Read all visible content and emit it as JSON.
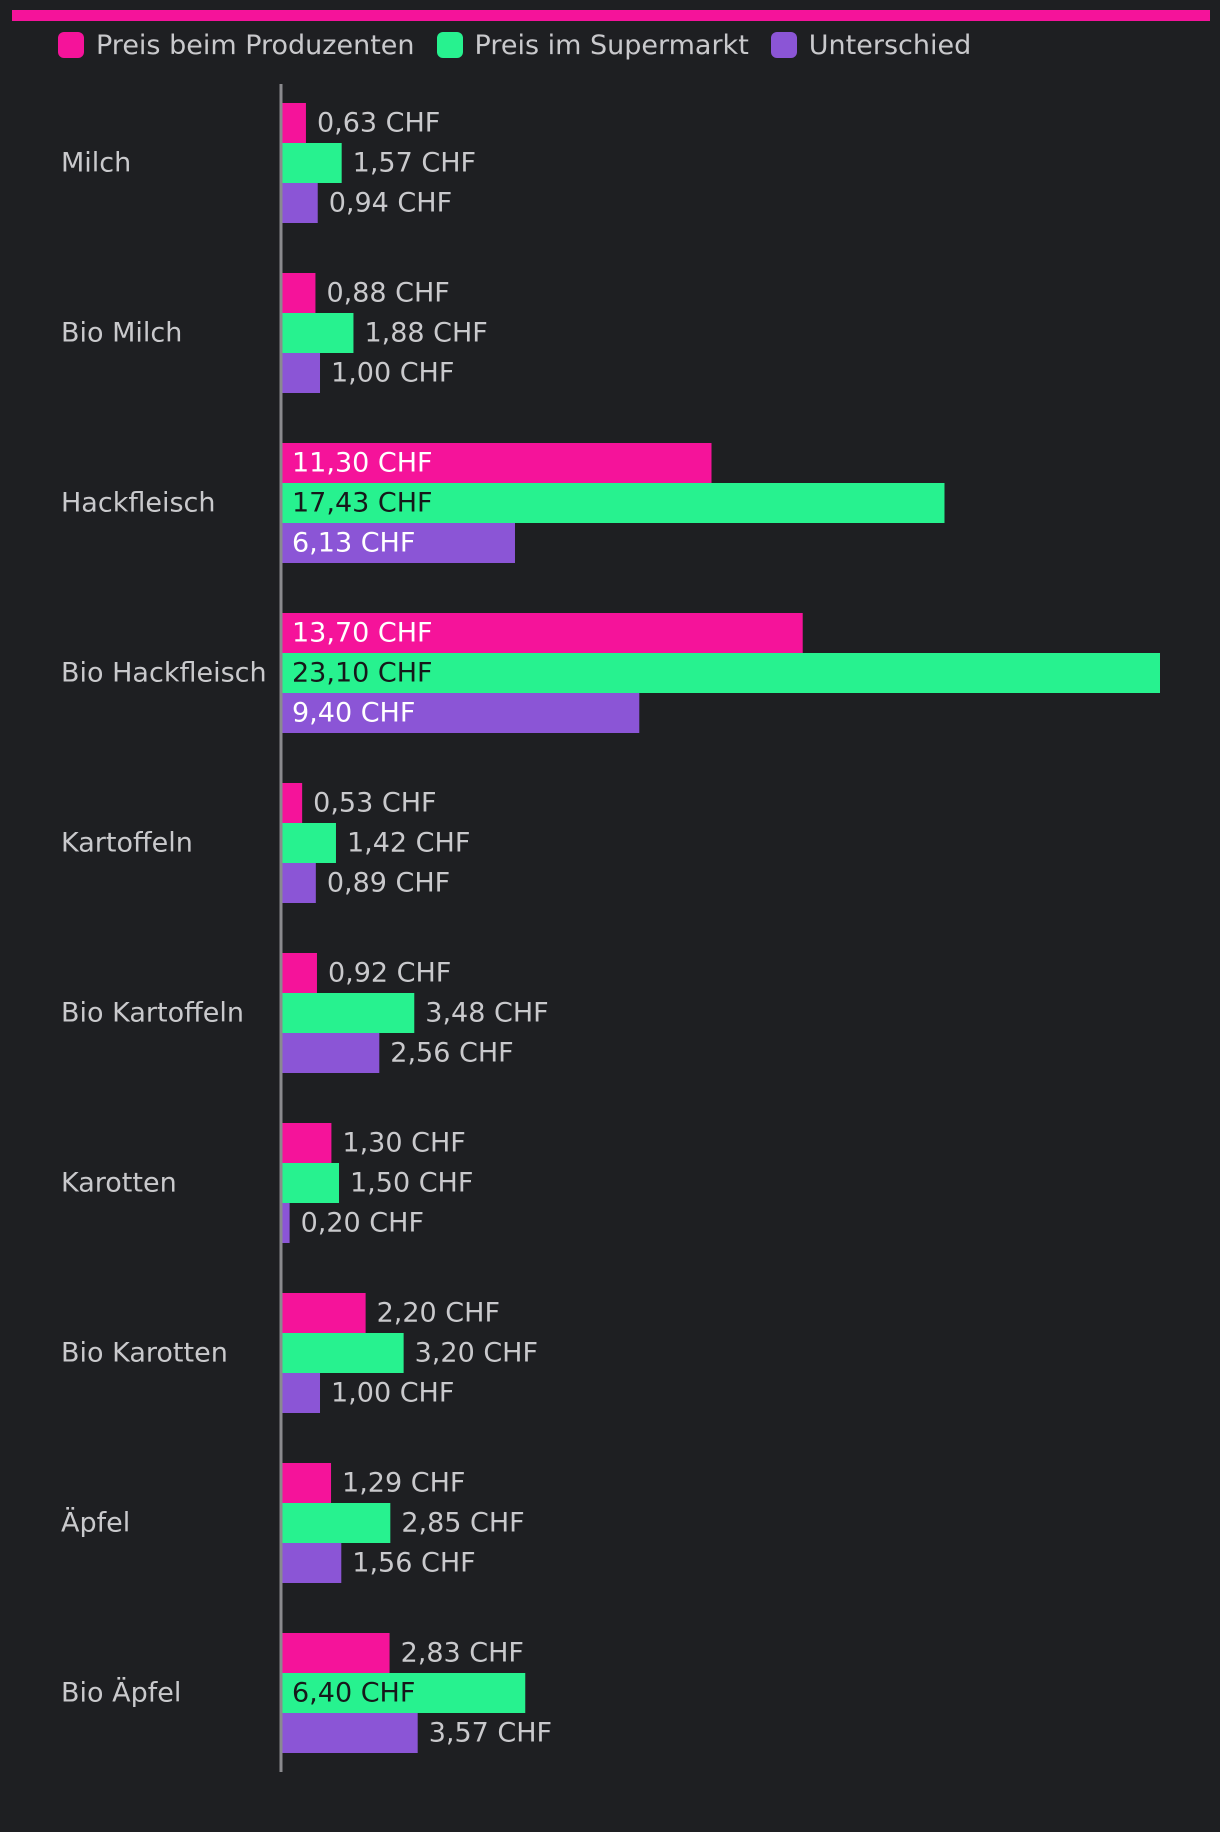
{
  "colors": {
    "background": "#1e1f22",
    "accent": "#f5139a",
    "producer": "#f5139a",
    "supermarket": "#27f28f",
    "difference": "#8b55d6",
    "text": "#c9c9cc",
    "axis": "#8a8a8e"
  },
  "legend": [
    {
      "label": "Preis beim Produzenten",
      "color": "#f5139a"
    },
    {
      "label": "Preis im Supermarkt",
      "color": "#27f28f"
    },
    {
      "label": "Unterschied",
      "color": "#8b55d6"
    }
  ],
  "chart_data": {
    "type": "bar",
    "orientation": "horizontal",
    "categories": [
      "Milch",
      "Bio Milch",
      "Hackfleisch",
      "Bio Hackfleisch",
      "Kartoffeln",
      "Bio Kartoffeln",
      "Karotten",
      "Bio Karotten",
      "Äpfel",
      "Bio Äpfel"
    ],
    "series": [
      {
        "name": "Preis beim Produzenten",
        "color": "#f5139a",
        "values": [
          0.63,
          0.88,
          11.3,
          13.7,
          0.53,
          0.92,
          1.3,
          2.2,
          1.29,
          2.83
        ],
        "labels": [
          "0,63 CHF",
          "0,88 CHF",
          "11,30 CHF",
          "13,70 CHF",
          "0,53 CHF",
          "0,92 CHF",
          "1,30 CHF",
          "2,20 CHF",
          "1,29 CHF",
          "2,83 CHF"
        ]
      },
      {
        "name": "Preis im Supermarkt",
        "color": "#27f28f",
        "values": [
          1.57,
          1.88,
          17.43,
          23.1,
          1.42,
          3.48,
          1.5,
          3.2,
          2.85,
          6.4
        ],
        "labels": [
          "1,57 CHF",
          "1,88 CHF",
          "17,43 CHF",
          "23,10 CHF",
          "1,42 CHF",
          "3,48 CHF",
          "1,50 CHF",
          "3,20 CHF",
          "2,85 CHF",
          "6,40 CHF"
        ]
      },
      {
        "name": "Unterschied",
        "color": "#8b55d6",
        "values": [
          0.94,
          1.0,
          6.13,
          9.4,
          0.89,
          2.56,
          0.2,
          1.0,
          1.56,
          3.57
        ],
        "labels": [
          "0,94 CHF",
          "1,00 CHF",
          "6,13 CHF",
          "9,40 CHF",
          "0,89 CHF",
          "2,56 CHF",
          "0,20 CHF",
          "1,00 CHF",
          "1,56 CHF",
          "3,57 CHF"
        ]
      }
    ],
    "xlim": [
      0,
      23.1
    ],
    "grid": false,
    "legend_position": "top-left"
  }
}
